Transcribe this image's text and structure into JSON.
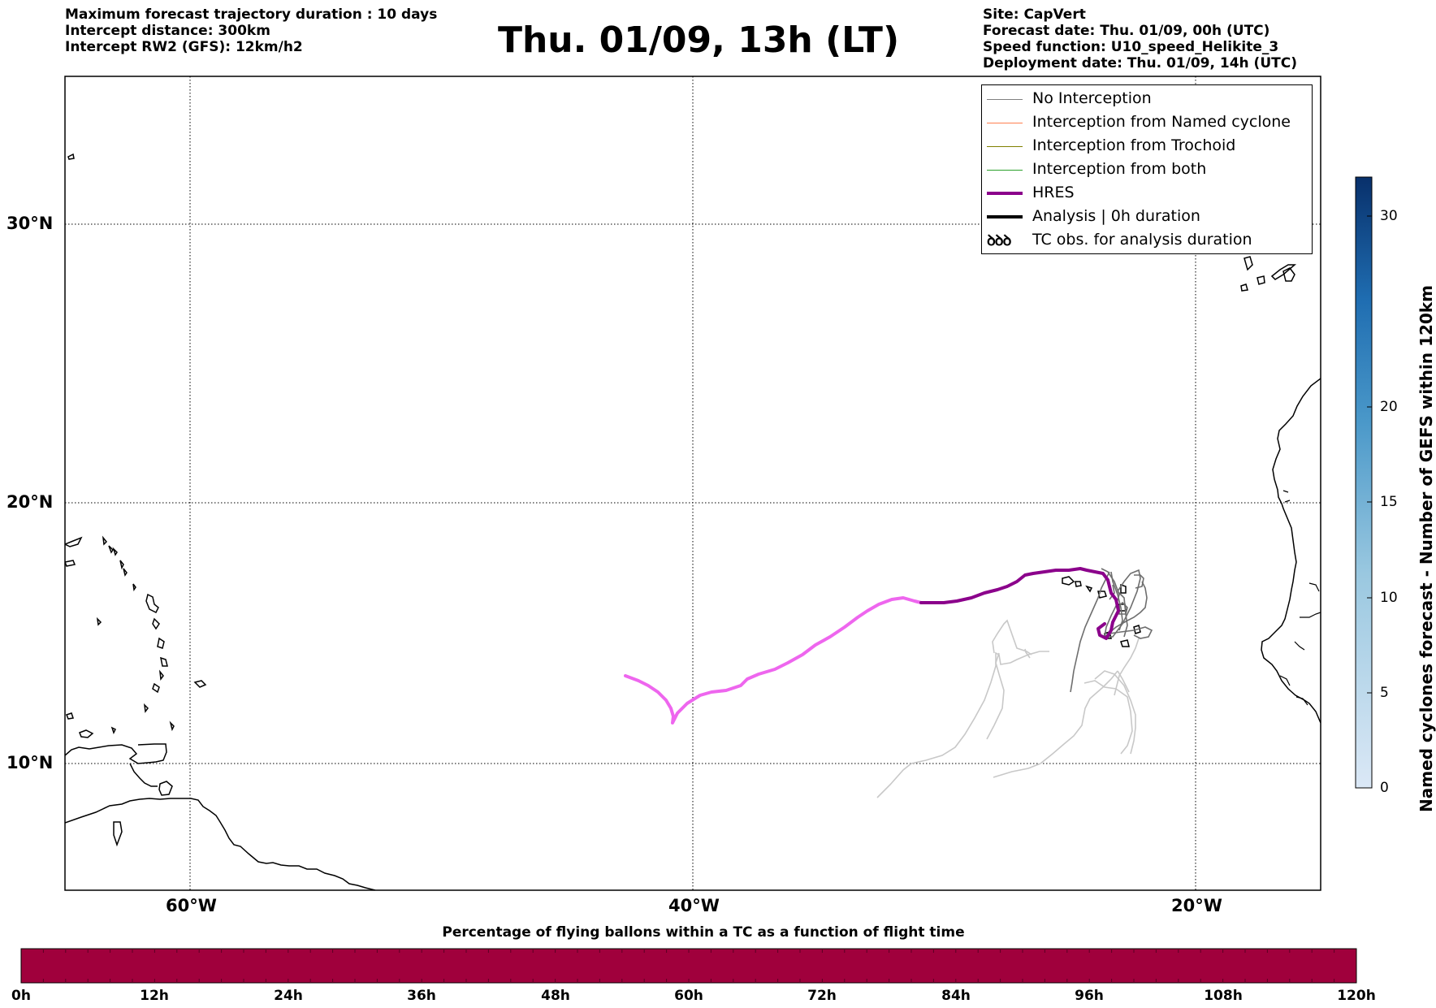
{
  "header_left": [
    "Maximum forecast trajectory duration : 10 days",
    "Intercept distance: 300km",
    "Intercept RW2 (GFS):  12km/h2"
  ],
  "title": "Thu. 01/09, 13h (LT)",
  "header_right": [
    "Site: CapVert",
    "Forecast date: Thu. 01/09, 00h (UTC)",
    "Speed function: U10_speed_Helikite_3",
    "Deployment date: Thu. 01/09, 14h (UTC)"
  ],
  "legend": [
    {
      "label": "No Interception",
      "color": "#808080",
      "style": "thin"
    },
    {
      "label": "Interception from Named cyclone",
      "color": "#ff7f50",
      "style": "thin"
    },
    {
      "label": "Interception from Trochoid",
      "color": "#808000",
      "style": "thin"
    },
    {
      "label": "Interception from both",
      "color": "#2ca02c",
      "style": "thin"
    },
    {
      "label": "HRES",
      "color": "#8b008b",
      "style": "thick"
    },
    {
      "label": "Analysis | 0h duration",
      "color": "#000000",
      "style": "thick"
    },
    {
      "label": "TC obs. for analysis duration",
      "symbol": "ꝺꝺꝺ",
      "style": "symbol"
    }
  ],
  "map": {
    "lon_range": [
      -65,
      -15
    ],
    "lat_range": [
      5.5,
      34.8
    ],
    "lon_ticks": [
      {
        "value": -60,
        "label": "60°W"
      },
      {
        "value": -40,
        "label": "40°W"
      },
      {
        "value": -20,
        "label": "20°W"
      }
    ],
    "lat_ticks": [
      {
        "value": 30,
        "label": "30°N"
      },
      {
        "value": 20,
        "label": "20°N"
      },
      {
        "value": 10,
        "label": "10°N"
      }
    ],
    "colors": {
      "hres_forecast": "#8b008b",
      "hres_extension": "#ee66ee",
      "ensemble_dark": "#6e6e6e",
      "ensemble_light": "#c8c8c8",
      "coast": "#000000"
    }
  },
  "colorbar_right": {
    "label": "Named cyclones forecast - Number of GEFS within 120km",
    "ticks": [
      "0",
      "5",
      "10",
      "15",
      "20",
      "30"
    ],
    "range": [
      0,
      32
    ],
    "cmap_low": "#dbe8f6",
    "cmap_high": "#08306b"
  },
  "colorbar_bottom": {
    "title": "Percentage of flying ballons within a TC as a function of flight time",
    "ticks": [
      "0h",
      "12h",
      "24h",
      "36h",
      "48h",
      "60h",
      "72h",
      "84h",
      "96h",
      "108h",
      "120h"
    ],
    "fill_color": "#a0003c"
  }
}
